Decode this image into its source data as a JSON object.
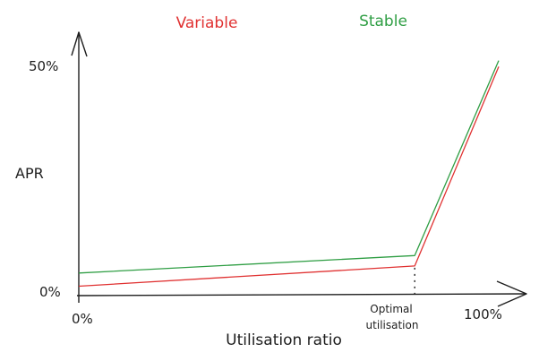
{
  "chart_data": {
    "type": "line",
    "title": "",
    "xlabel": "Utilisation ratio",
    "ylabel": "APR",
    "x_ticks": [
      "0%",
      "100%"
    ],
    "y_ticks": [
      "0%",
      "50%"
    ],
    "annotation": {
      "line1": "Optimal",
      "line2": "utilisation",
      "x": 80
    },
    "xlim": [
      0,
      100
    ],
    "ylim": [
      0,
      50
    ],
    "series": [
      {
        "name": "Variable",
        "color": "#e03131",
        "x": [
          0,
          80,
          100
        ],
        "y": [
          1.8,
          6.1,
          48.4
        ]
      },
      {
        "name": "Stable",
        "color": "#2f9e44",
        "x": [
          0,
          80,
          100
        ],
        "y": [
          4.6,
          8.3,
          49.7
        ]
      }
    ],
    "legend_placement": "top",
    "grid": false
  }
}
